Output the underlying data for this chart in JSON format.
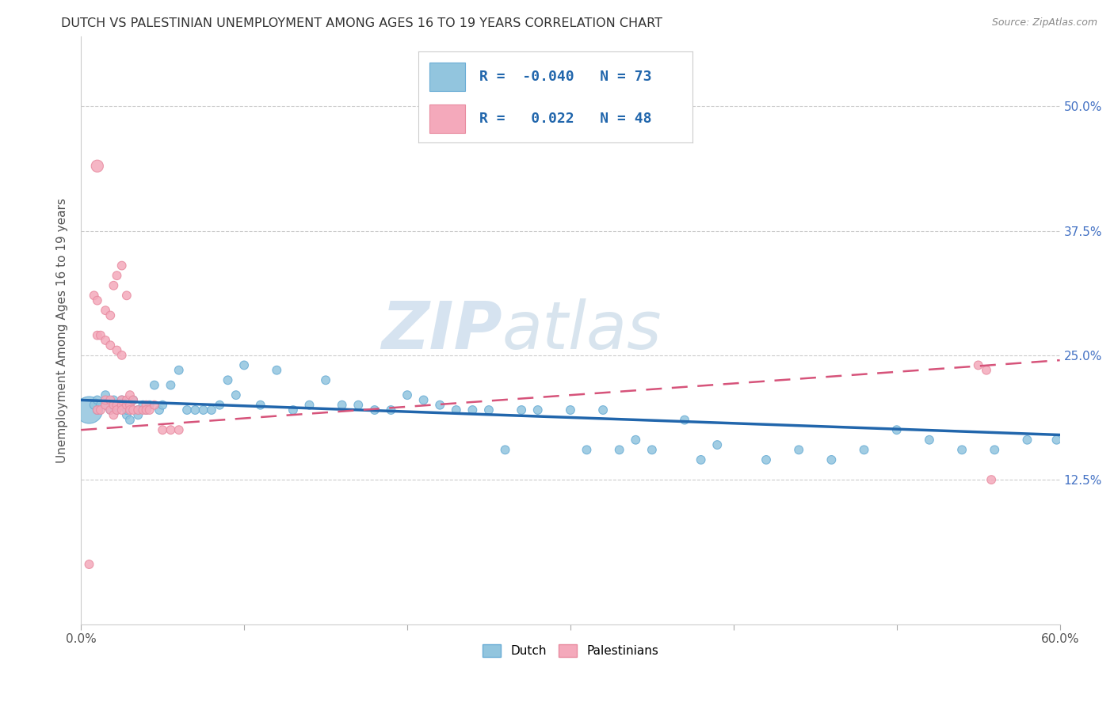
{
  "title": "DUTCH VS PALESTINIAN UNEMPLOYMENT AMONG AGES 16 TO 19 YEARS CORRELATION CHART",
  "source": "Source: ZipAtlas.com",
  "xlabel_ticks": [
    "0.0%",
    "",
    "",
    "",
    "",
    "",
    "60.0%"
  ],
  "xlabel_vals": [
    0.0,
    0.1,
    0.2,
    0.3,
    0.4,
    0.5,
    0.6
  ],
  "ylabel_ticks": [
    "12.5%",
    "25.0%",
    "37.5%",
    "50.0%"
  ],
  "ylabel_vals": [
    0.125,
    0.25,
    0.375,
    0.5
  ],
  "ylabel_label": "Unemployment Among Ages 16 to 19 years",
  "dutch_R": -0.04,
  "dutch_N": 73,
  "palest_R": 0.022,
  "palest_N": 48,
  "dutch_color": "#92C5DE",
  "palest_color": "#F4A9BB",
  "dutch_edge_color": "#6aadd5",
  "palest_edge_color": "#e88ba0",
  "dutch_line_color": "#2166AC",
  "palest_line_color": "#D6537A",
  "watermark_zip": "ZIP",
  "watermark_atlas": "atlas",
  "xlim": [
    0.0,
    0.6
  ],
  "ylim": [
    -0.02,
    0.57
  ],
  "background_color": "#ffffff",
  "grid_color": "#cccccc",
  "dutch_trend_x": [
    0.0,
    0.6
  ],
  "dutch_trend_y": [
    0.205,
    0.17
  ],
  "palest_trend_x": [
    0.0,
    0.6
  ],
  "palest_trend_y": [
    0.175,
    0.245
  ],
  "dutch_x": [
    0.005,
    0.008,
    0.01,
    0.01,
    0.012,
    0.015,
    0.015,
    0.018,
    0.02,
    0.02,
    0.022,
    0.025,
    0.025,
    0.028,
    0.028,
    0.03,
    0.03,
    0.032,
    0.035,
    0.035,
    0.038,
    0.04,
    0.042,
    0.045,
    0.048,
    0.05,
    0.055,
    0.06,
    0.065,
    0.07,
    0.075,
    0.08,
    0.085,
    0.09,
    0.095,
    0.1,
    0.11,
    0.12,
    0.13,
    0.14,
    0.15,
    0.16,
    0.17,
    0.18,
    0.19,
    0.2,
    0.21,
    0.22,
    0.23,
    0.24,
    0.25,
    0.26,
    0.27,
    0.28,
    0.3,
    0.31,
    0.32,
    0.33,
    0.34,
    0.35,
    0.37,
    0.38,
    0.39,
    0.42,
    0.44,
    0.46,
    0.48,
    0.5,
    0.52,
    0.54,
    0.56,
    0.58,
    0.598
  ],
  "dutch_y": [
    0.195,
    0.2,
    0.195,
    0.205,
    0.2,
    0.2,
    0.21,
    0.195,
    0.2,
    0.205,
    0.195,
    0.2,
    0.205,
    0.19,
    0.195,
    0.185,
    0.2,
    0.205,
    0.195,
    0.19,
    0.2,
    0.195,
    0.2,
    0.22,
    0.195,
    0.2,
    0.22,
    0.235,
    0.195,
    0.195,
    0.195,
    0.195,
    0.2,
    0.225,
    0.21,
    0.24,
    0.2,
    0.235,
    0.195,
    0.2,
    0.225,
    0.2,
    0.2,
    0.195,
    0.195,
    0.21,
    0.205,
    0.2,
    0.195,
    0.195,
    0.195,
    0.155,
    0.195,
    0.195,
    0.195,
    0.155,
    0.195,
    0.155,
    0.165,
    0.155,
    0.185,
    0.145,
    0.16,
    0.145,
    0.155,
    0.145,
    0.155,
    0.175,
    0.165,
    0.155,
    0.155,
    0.165,
    0.165
  ],
  "dutch_size": [
    600,
    60,
    60,
    60,
    60,
    60,
    60,
    60,
    60,
    60,
    60,
    60,
    60,
    60,
    60,
    60,
    60,
    60,
    60,
    60,
    60,
    60,
    60,
    60,
    60,
    60,
    60,
    60,
    60,
    60,
    60,
    60,
    60,
    60,
    60,
    60,
    60,
    60,
    60,
    60,
    60,
    60,
    60,
    60,
    60,
    60,
    60,
    60,
    60,
    60,
    60,
    60,
    60,
    60,
    60,
    60,
    60,
    60,
    60,
    60,
    60,
    60,
    60,
    60,
    60,
    60,
    60,
    60,
    60,
    60,
    60,
    60,
    60
  ],
  "palest_x": [
    0.005,
    0.01,
    0.012,
    0.015,
    0.015,
    0.018,
    0.018,
    0.02,
    0.02,
    0.022,
    0.022,
    0.025,
    0.025,
    0.025,
    0.028,
    0.028,
    0.03,
    0.03,
    0.03,
    0.032,
    0.032,
    0.035,
    0.038,
    0.04,
    0.04,
    0.042,
    0.045,
    0.05,
    0.055,
    0.06,
    0.01,
    0.012,
    0.015,
    0.018,
    0.022,
    0.025,
    0.008,
    0.01,
    0.015,
    0.018,
    0.02,
    0.022,
    0.025,
    0.028,
    0.55,
    0.555,
    0.558,
    0.01
  ],
  "palest_y": [
    0.04,
    0.195,
    0.195,
    0.2,
    0.205,
    0.195,
    0.205,
    0.2,
    0.19,
    0.2,
    0.195,
    0.2,
    0.205,
    0.195,
    0.2,
    0.205,
    0.2,
    0.195,
    0.21,
    0.195,
    0.205,
    0.195,
    0.195,
    0.2,
    0.195,
    0.195,
    0.2,
    0.175,
    0.175,
    0.175,
    0.27,
    0.27,
    0.265,
    0.26,
    0.255,
    0.25,
    0.31,
    0.305,
    0.295,
    0.29,
    0.32,
    0.33,
    0.34,
    0.31,
    0.24,
    0.235,
    0.125,
    0.44
  ],
  "palest_size": [
    60,
    60,
    60,
    60,
    60,
    60,
    60,
    60,
    60,
    60,
    60,
    60,
    60,
    60,
    60,
    60,
    60,
    60,
    60,
    60,
    60,
    60,
    60,
    60,
    60,
    60,
    60,
    60,
    60,
    60,
    60,
    60,
    60,
    60,
    60,
    60,
    60,
    60,
    60,
    60,
    60,
    60,
    60,
    60,
    60,
    60,
    60,
    120
  ]
}
